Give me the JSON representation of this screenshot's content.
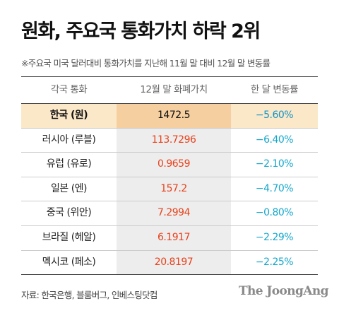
{
  "title": "원화, 주요국 통화가치 하락 2위",
  "subtitle": "※주요국 미국 달러대비 통화가치를 지난해 11월 말 대비 12월 말 변동률",
  "source": "자료: 한국은행, 블룸버그, 인베스팅닷컴",
  "logo": "The JoongAng",
  "chart_data": {
    "type": "table",
    "columns": [
      "각국 통화",
      "12월 말 화폐가치",
      "한 달 변동률"
    ],
    "rows": [
      {
        "currency": "한국 (원)",
        "value": "1472.5",
        "change": "−5.60%",
        "highlight": true
      },
      {
        "currency": "러시아 (루블)",
        "value": "113.7296",
        "change": "−6.40%",
        "highlight": false
      },
      {
        "currency": "유럽 (유로)",
        "value": "0.9659",
        "change": "−2.10%",
        "highlight": false
      },
      {
        "currency": "일본 (엔)",
        "value": "157.2",
        "change": "−4.70%",
        "highlight": false
      },
      {
        "currency": "중국 (위안)",
        "value": "7.2994",
        "change": "−0.80%",
        "highlight": false
      },
      {
        "currency": "브라질 (헤알)",
        "value": "6.1917",
        "change": "−2.29%",
        "highlight": false
      },
      {
        "currency": "멕시코 (페소)",
        "value": "20.8197",
        "change": "−2.25%",
        "highlight": false
      }
    ]
  },
  "colors": {
    "value_text": "#e8421c",
    "change_text": "#16a7cc",
    "highlight_row": "#fbe8c9",
    "highlight_value_cell": "#f5cfa0",
    "value_column_bg": "#ededed"
  }
}
